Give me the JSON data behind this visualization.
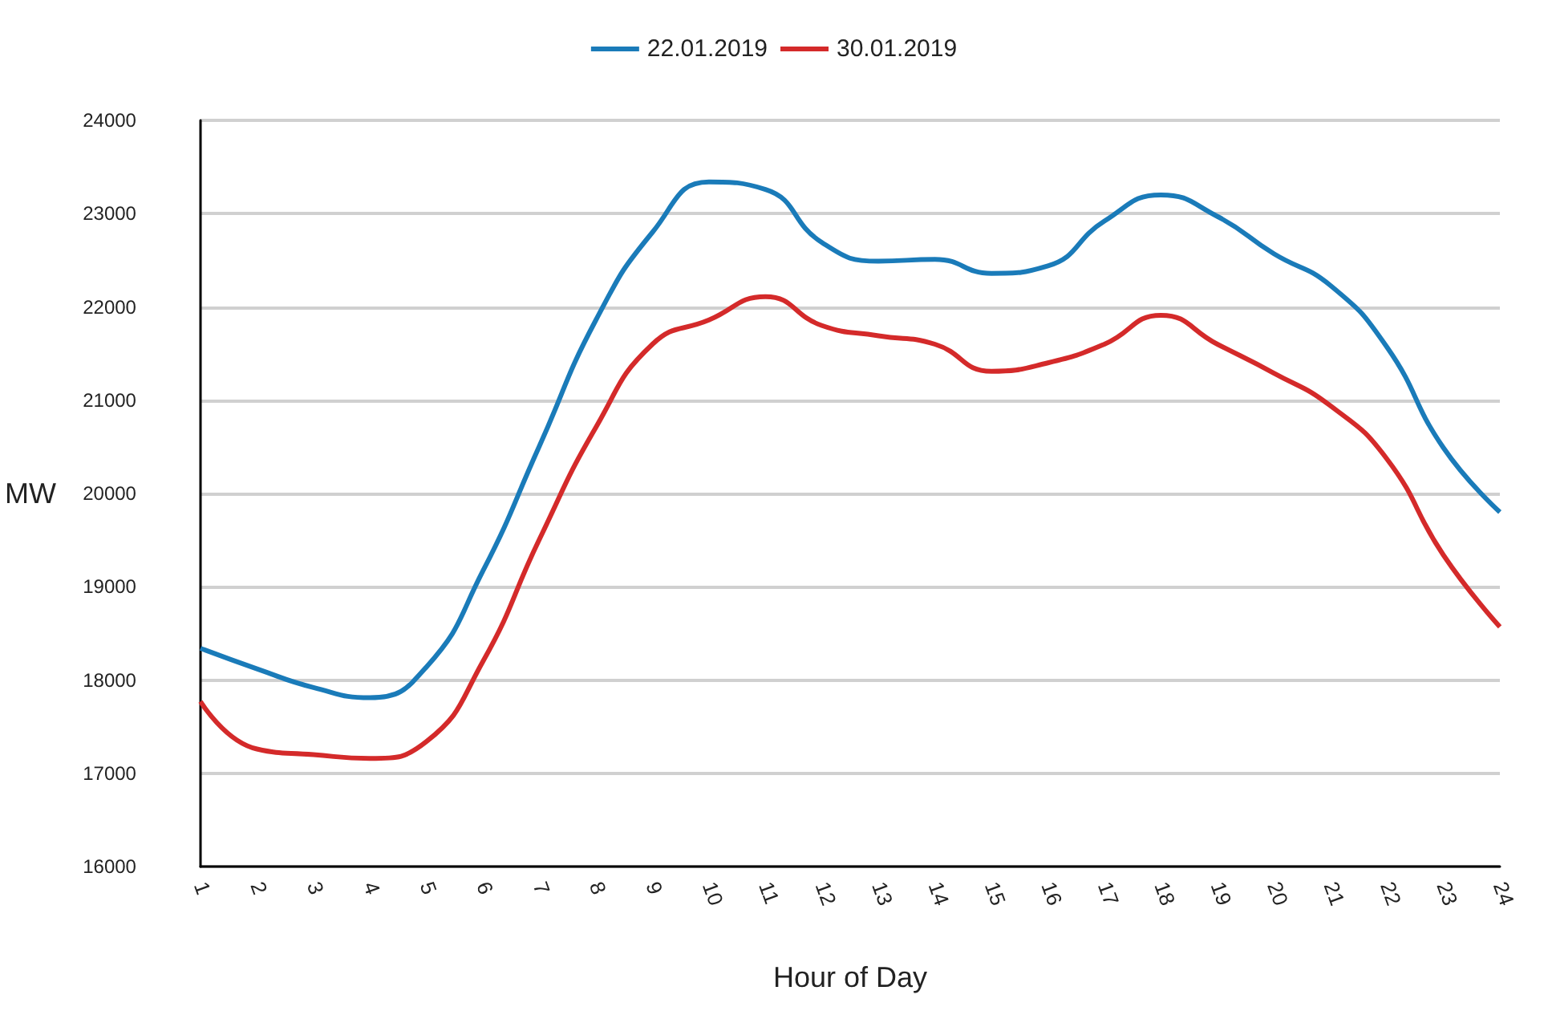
{
  "chart_data": {
    "type": "line",
    "xlabel": "Hour of Day",
    "ylabel": "MW",
    "categories": [
      "1",
      "2",
      "3",
      "4",
      "5",
      "6",
      "7",
      "8",
      "9",
      "10",
      "11",
      "12",
      "13",
      "14",
      "15",
      "16",
      "17",
      "18",
      "19",
      "20",
      "21",
      "22",
      "23",
      "24"
    ],
    "series": [
      {
        "name": "22.01.2019",
        "color": "#1a7bb9",
        "values": [
          18340,
          18120,
          17920,
          17810,
          18140,
          19170,
          20510,
          21860,
          22800,
          23340,
          23260,
          22690,
          22490,
          22510,
          22360,
          22440,
          22920,
          23200,
          22970,
          22570,
          22230,
          21570,
          20490,
          19800
        ]
      },
      {
        "name": "30.01.2019",
        "color": "#d42a2a",
        "values": [
          17770,
          17260,
          17200,
          17160,
          17340,
          18200,
          19510,
          20710,
          21600,
          21860,
          22110,
          21800,
          21690,
          21600,
          21310,
          21400,
          21600,
          21910,
          21600,
          21290,
          20940,
          20370,
          19340,
          18570
        ]
      }
    ],
    "ylim": [
      16000,
      24000
    ],
    "yticks": [
      16000,
      17000,
      18000,
      19000,
      20000,
      21000,
      22000,
      23000,
      24000
    ],
    "grid": "y",
    "legend": "top",
    "marker": "none",
    "line_style": "solid"
  }
}
